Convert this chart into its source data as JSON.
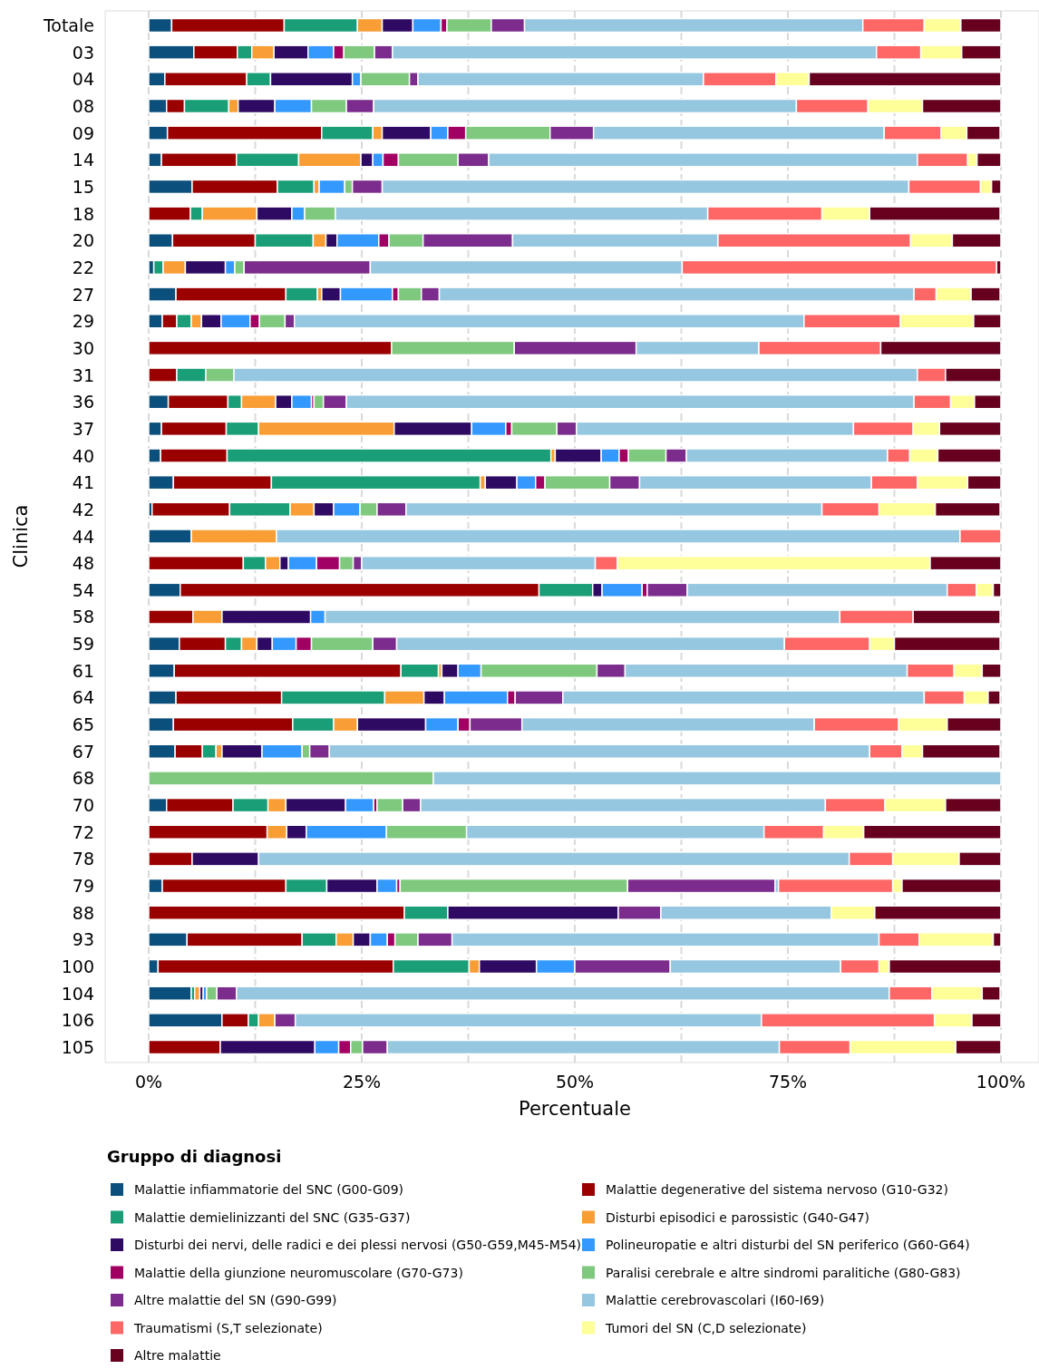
{
  "chart_data": {
    "type": "bar",
    "orientation": "horizontal",
    "stacked": true,
    "xlabel": "Percentuale",
    "ylabel": "Clinica",
    "legend_title": "Gruppo di diagnosi",
    "legend": "bottom",
    "grid": "x",
    "categories": [
      "Totale",
      "03",
      "04",
      "08",
      "09",
      "14",
      "15",
      "18",
      "20",
      "22",
      "27",
      "29",
      "30",
      "31",
      "36",
      "37",
      "40",
      "41",
      "42",
      "44",
      "48",
      "54",
      "58",
      "59",
      "61",
      "64",
      "65",
      "67",
      "68",
      "70",
      "72",
      "78",
      "79",
      "88",
      "93",
      "100",
      "104",
      "106",
      "105"
    ],
    "xlim": [
      0,
      100
    ],
    "xticks": [
      {
        "value": 0,
        "label": "0%"
      },
      {
        "value": 12.5,
        "label": null
      },
      {
        "value": 25,
        "label": "25%"
      },
      {
        "value": 37.5,
        "label": null
      },
      {
        "value": 50,
        "label": "50%"
      },
      {
        "value": 62.5,
        "label": null
      },
      {
        "value": 75,
        "label": "75%"
      },
      {
        "value": 87.5,
        "label": null
      },
      {
        "value": 100,
        "label": "100%"
      }
    ],
    "series": [
      {
        "name": "Malattie infiammatorie del SNC (G00-G09)",
        "color": "#0b4f7c",
        "values": [
          2.7,
          5.3,
          1.9,
          2.1,
          2.2,
          1.5,
          5.1,
          0,
          2.8,
          0.6,
          3.2,
          1.6,
          0,
          0,
          2.3,
          1.5,
          1.4,
          2.9,
          0.4,
          5.0,
          0,
          3.7,
          0,
          3.6,
          3.0,
          3.2,
          2.9,
          3.1,
          0,
          2.1,
          0,
          0,
          1.6,
          0,
          4.5,
          1.1,
          5.0,
          8.6,
          0
        ]
      },
      {
        "name": "Malattie degenerative del sistema nervoso (G10-G32)",
        "color": "#9a0000",
        "values": [
          13.2,
          5.1,
          9.6,
          2.1,
          18.1,
          8.8,
          10.0,
          4.9,
          9.7,
          0,
          12.9,
          1.7,
          28.5,
          3.3,
          7.0,
          7.6,
          7.8,
          11.5,
          9.1,
          0,
          11.1,
          42.1,
          5.2,
          5.4,
          26.6,
          12.4,
          14.0,
          3.2,
          0,
          7.8,
          13.9,
          5.1,
          14.5,
          30.0,
          13.5,
          27.6,
          0,
          3.1,
          8.4
        ]
      },
      {
        "name": "Malattie demielinizzanti del SNC (G35-G37)",
        "color": "#1a9e77",
        "values": [
          8.6,
          1.7,
          2.8,
          5.2,
          6.0,
          7.3,
          4.3,
          1.4,
          6.8,
          1.1,
          3.7,
          1.7,
          0,
          3.4,
          1.6,
          3.8,
          38.0,
          24.5,
          7.1,
          0,
          2.6,
          6.3,
          0,
          1.9,
          4.4,
          12.1,
          4.8,
          1.6,
          0,
          4.1,
          0,
          0,
          4.8,
          5.1,
          4.0,
          8.9,
          0.4,
          1.2,
          0
        ]
      },
      {
        "name": "Disturbi episodici e parossistic (G40-G47)",
        "color": "#f99d35",
        "values": [
          2.9,
          2.6,
          0,
          1.1,
          1.1,
          7.3,
          0.6,
          6.4,
          1.5,
          2.6,
          0.5,
          1.2,
          0,
          0,
          4.0,
          15.9,
          0.5,
          0.6,
          2.8,
          10.0,
          1.7,
          0,
          3.4,
          1.8,
          0.4,
          4.6,
          2.8,
          0.7,
          0,
          2.1,
          2.3,
          0,
          0,
          0,
          2.0,
          1.2,
          0.6,
          1.9,
          0
        ]
      },
      {
        "name": "Disturbi dei nervi, delle radici e dei plessi nervosi (G50-G59,M45-M54)",
        "color": "#2f0a63",
        "values": [
          3.6,
          4.0,
          9.6,
          4.3,
          5.7,
          1.4,
          0,
          4.1,
          1.3,
          4.7,
          2.2,
          2.3,
          0,
          0,
          1.9,
          9.1,
          5.4,
          3.7,
          2.3,
          0,
          1.0,
          1.1,
          10.4,
          1.8,
          1.9,
          2.4,
          8.0,
          4.7,
          0,
          7.0,
          2.3,
          7.8,
          5.9,
          20.0,
          2.0,
          6.7,
          0.4,
          0,
          11.1
        ]
      },
      {
        "name": "Polineuropatie e altri disturbi del SN periferico (G60-G64)",
        "color": "#3399ff",
        "values": [
          3.3,
          3.0,
          1.0,
          4.3,
          2.0,
          1.2,
          3.0,
          1.5,
          4.9,
          1.1,
          6.1,
          3.4,
          0,
          0,
          2.3,
          4.0,
          2.1,
          2.2,
          3.1,
          0,
          3.3,
          4.7,
          1.7,
          2.8,
          2.7,
          7.4,
          3.8,
          4.7,
          0,
          3.3,
          9.4,
          0,
          2.3,
          0,
          2.0,
          4.5,
          0.4,
          0,
          2.8
        ]
      },
      {
        "name": "Malattie della giunzione neuromuscolare (G70-G73)",
        "color": "#a10062",
        "values": [
          0.7,
          1.2,
          0,
          0,
          2.1,
          1.8,
          0,
          0,
          1.2,
          0,
          0.7,
          1.1,
          0,
          0,
          0.3,
          0.7,
          1.1,
          1.1,
          0,
          0,
          2.7,
          0.6,
          0,
          1.8,
          0,
          0.9,
          1.4,
          0,
          0,
          0.4,
          0,
          0,
          0.4,
          0,
          0.9,
          0,
          0,
          0,
          1.4
        ]
      },
      {
        "name": "Paralisi cerebrale e altre sindromi paralitiche (G80-G83)",
        "color": "#7fc97f",
        "values": [
          5.2,
          3.6,
          5.7,
          4.1,
          9.9,
          7.0,
          0.9,
          3.6,
          4.0,
          1.1,
          2.7,
          3.0,
          14.4,
          3.3,
          1.1,
          5.3,
          4.4,
          7.6,
          2.0,
          0,
          1.6,
          0,
          0,
          7.2,
          13.6,
          0,
          0,
          0.9,
          33.4,
          3.0,
          9.4,
          0,
          26.7,
          0,
          2.7,
          0,
          1.2,
          0,
          1.4
        ]
      },
      {
        "name": "Altre malattie del SN (G90-G99)",
        "color": "#7b2c8c",
        "values": [
          3.9,
          2.1,
          1.0,
          3.2,
          5.1,
          3.6,
          3.5,
          0,
          10.5,
          14.8,
          2.1,
          1.1,
          14.3,
          0,
          2.7,
          2.3,
          2.4,
          3.5,
          3.4,
          0,
          1.0,
          4.7,
          0,
          2.8,
          3.3,
          5.6,
          6.1,
          2.3,
          0,
          2.1,
          0,
          0,
          17.3,
          5.0,
          4.0,
          11.2,
          2.3,
          2.4,
          2.9
        ]
      },
      {
        "name": "Malattie cerebrovascolari (I60-I69)",
        "color": "#96c7e0",
        "values": [
          39.7,
          56.8,
          33.5,
          49.6,
          34.1,
          50.3,
          61.8,
          43.7,
          24.1,
          36.6,
          55.7,
          59.8,
          14.4,
          80.2,
          66.6,
          32.5,
          23.6,
          27.2,
          48.8,
          80.2,
          27.4,
          30.5,
          60.4,
          45.5,
          33.1,
          42.4,
          34.3,
          63.4,
          66.6,
          47.5,
          34.9,
          69.3,
          0.4,
          20.0,
          50.1,
          20.0,
          76.6,
          54.7,
          46.0
        ]
      },
      {
        "name": "Traumatismi (S,T selezionate)",
        "color": "#ff6666",
        "values": [
          7.2,
          5.2,
          8.5,
          8.4,
          6.7,
          5.9,
          8.4,
          13.4,
          22.6,
          36.9,
          2.6,
          11.3,
          14.3,
          3.3,
          4.3,
          7.0,
          2.6,
          5.4,
          6.7,
          4.8,
          2.6,
          3.4,
          8.6,
          10.0,
          5.5,
          4.7,
          9.9,
          3.8,
          0,
          7.0,
          7.0,
          5.1,
          13.4,
          0,
          4.7,
          4.5,
          5.0,
          20.3,
          8.3
        ]
      },
      {
        "name": "Tumori del SN (C,D selezionate)",
        "color": "#ffff99",
        "values": [
          4.3,
          4.8,
          3.9,
          6.4,
          3.0,
          1.1,
          1.3,
          5.6,
          4.9,
          0,
          4.1,
          8.6,
          0,
          0,
          2.8,
          3.1,
          3.3,
          5.9,
          6.6,
          0,
          36.7,
          2.0,
          0,
          2.9,
          3.3,
          2.8,
          5.7,
          2.4,
          0,
          7.1,
          4.7,
          7.8,
          1.1,
          5.1,
          8.7,
          1.2,
          5.9,
          4.4,
          12.4
        ]
      },
      {
        "name": "Altre malattie",
        "color": "#67001f",
        "values": [
          4.7,
          4.6,
          22.5,
          9.2,
          3.9,
          2.8,
          1.1,
          15.3,
          5.7,
          0.5,
          3.4,
          3.2,
          14.1,
          6.5,
          3.1,
          7.2,
          7.4,
          3.9,
          7.6,
          0,
          8.3,
          0.9,
          10.2,
          12.4,
          2.2,
          1.4,
          6.3,
          9.1,
          0,
          6.5,
          16.1,
          4.9,
          11.6,
          14.8,
          0.9,
          13.1,
          2.1,
          3.4,
          5.3
        ]
      }
    ]
  }
}
